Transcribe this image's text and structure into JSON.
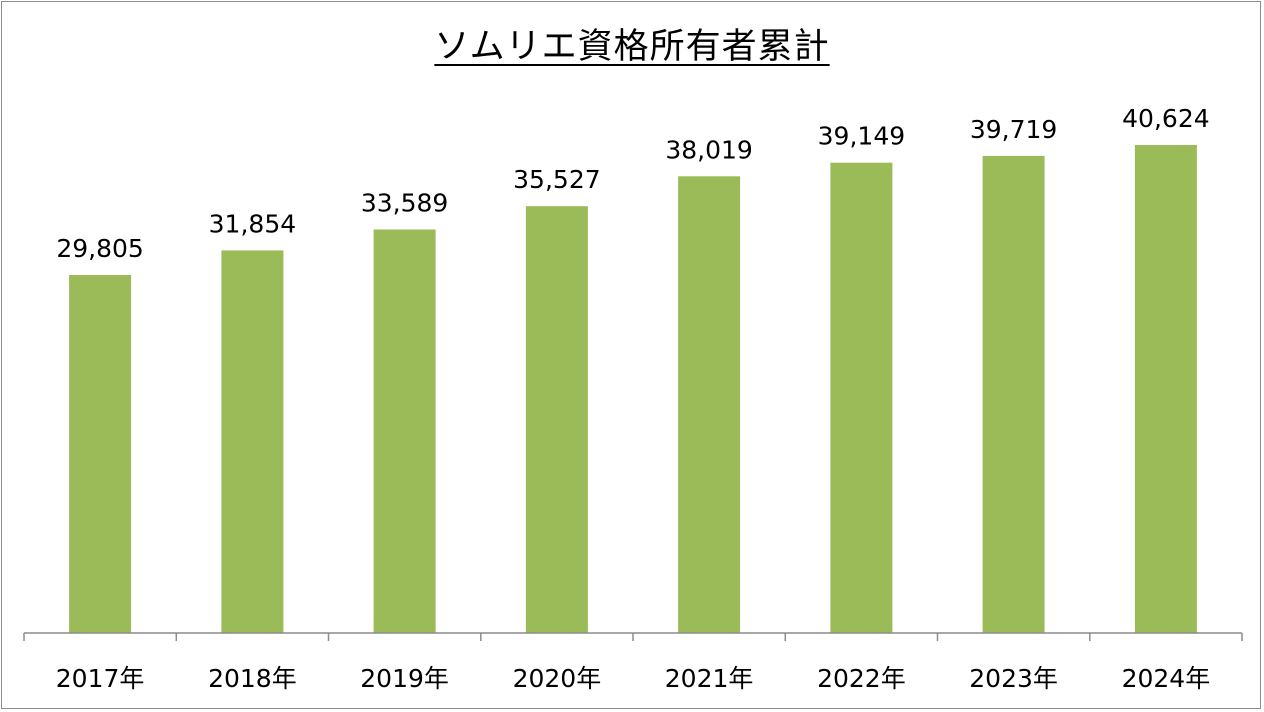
{
  "chart_data": {
    "type": "bar",
    "title": "ソムリエ資格所有者累計",
    "categories": [
      "2017年",
      "2018年",
      "2019年",
      "2020年",
      "2021年",
      "2022年",
      "2023年",
      "2024年"
    ],
    "values": [
      29805,
      31854,
      33589,
      35527,
      38019,
      39149,
      39719,
      40624
    ],
    "data_labels": [
      "29,805",
      "31,854",
      "33,589",
      "35,527",
      "38,019",
      "39,149",
      "39,719",
      "40,624"
    ],
    "xlabel": "",
    "ylabel": "",
    "ylim": [
      0,
      45000
    ],
    "grid": false,
    "legend": "none",
    "bar_color": "#9bbb59",
    "axis_color": "#8c8c8c"
  }
}
